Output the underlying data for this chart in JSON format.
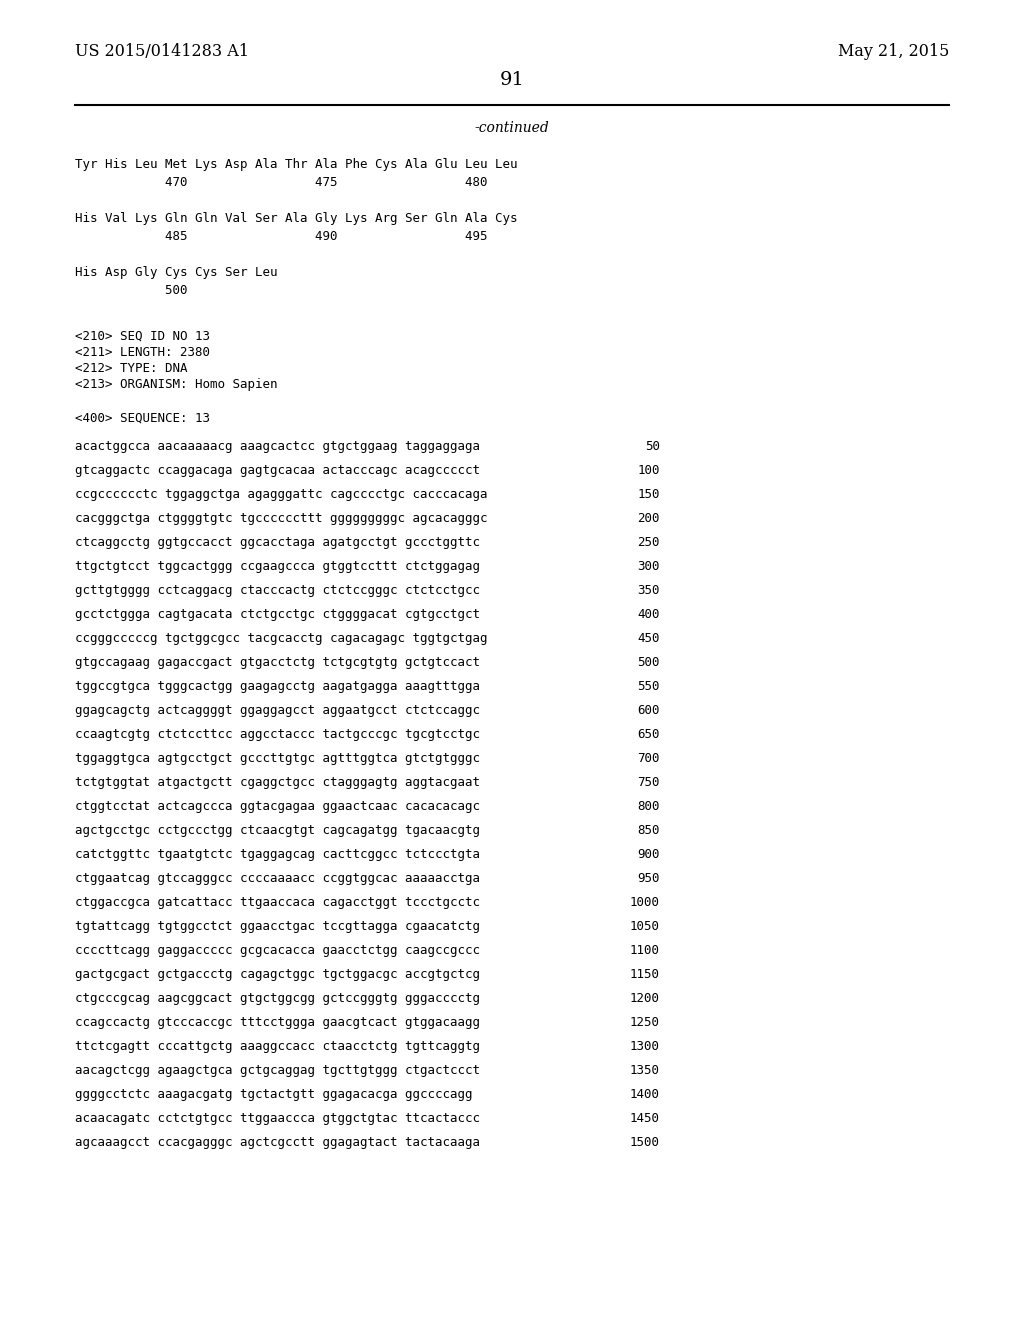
{
  "left_header": "US 2015/0141283 A1",
  "right_header": "May 21, 2015",
  "page_number": "91",
  "continued_label": "-continued",
  "background_color": "#ffffff",
  "text_color": "#000000",
  "protein_lines": [
    "Tyr His Leu Met Lys Asp Ala Thr Ala Phe Cys Ala Glu Leu Leu",
    "            470                 475                 480",
    "",
    "His Val Lys Gln Gln Val Ser Ala Gly Lys Arg Ser Gln Ala Cys",
    "            485                 490                 495",
    "",
    "His Asp Gly Cys Cys Ser Leu",
    "            500"
  ],
  "metadata_lines": [
    "<210> SEQ ID NO 13",
    "<211> LENGTH: 2380",
    "<212> TYPE: DNA",
    "<213> ORGANISM: Homo Sapien"
  ],
  "sequence_label": "<400> SEQUENCE: 13",
  "sequence_lines": [
    [
      "acactggcca aacaaaaacg aaagcactcc gtgctggaag taggaggaga",
      "50"
    ],
    [
      "gtcaggactc ccaggacaga gagtgcacaa actacccagc acagccccct",
      "100"
    ],
    [
      "ccgcccccctc tggaggctga agagggattc cagcccctgc cacccacaga",
      "150"
    ],
    [
      "cacgggctga ctggggtgtc tgccccccttt gggggggggc agcacagggc",
      "200"
    ],
    [
      "ctcaggcctg ggtgccacct ggcacctaga agatgcctgt gccctggttc",
      "250"
    ],
    [
      "ttgctgtcct tggcactggg ccgaagccca gtggtccttt ctctggagag",
      "300"
    ],
    [
      "gcttgtgggg cctcaggacg ctacccactg ctctccgggc ctctcctgcc",
      "350"
    ],
    [
      "gcctctggga cagtgacata ctctgcctgc ctggggacat cgtgcctgct",
      "400"
    ],
    [
      "ccgggcccccg tgctggcgcc tacgcacctg cagacagagc tggtgctgag",
      "450"
    ],
    [
      "gtgccagaag gagaccgact gtgacctctg tctgcgtgtg gctgtccact",
      "500"
    ],
    [
      "tggccgtgca tgggcactgg gaagagcctg aagatgagga aaagtttgga",
      "550"
    ],
    [
      "ggagcagctg actcaggggt ggaggagcct aggaatgcct ctctccaggc",
      "600"
    ],
    [
      "ccaagtcgtg ctctccttcc aggcctaccc tactgcccgc tgcgtcctgc",
      "650"
    ],
    [
      "tggaggtgca agtgcctgct gcccttgtgc agtttggtca gtctgtgggc",
      "700"
    ],
    [
      "tctgtggtat atgactgctt cgaggctgcc ctagggagtg aggtacgaat",
      "750"
    ],
    [
      "ctggtcctat actcagccca ggtacgagaa ggaactcaac cacacacagc",
      "800"
    ],
    [
      "agctgcctgc cctgccctgg ctcaacgtgt cagcagatgg tgacaacgtg",
      "850"
    ],
    [
      "catctggttc tgaatgtctc tgaggagcag cacttcggcc tctccctgta",
      "900"
    ],
    [
      "ctggaatcag gtccagggcc ccccaaaacc ccggtggcac aaaaacctga",
      "950"
    ],
    [
      "ctggaccgca gatcattacc ttgaaccaca cagacctggt tccctgcctc",
      "1000"
    ],
    [
      "tgtattcagg tgtggcctct ggaacctgac tccgttagga cgaacatctg",
      "1050"
    ],
    [
      "ccccttcagg gaggaccccc gcgcacacca gaacctctgg caagccgccc",
      "1100"
    ],
    [
      "gactgcgact gctgaccctg cagagctggc tgctggacgc accgtgctcg",
      "1150"
    ],
    [
      "ctgcccgcag aagcggcact gtgctggcgg gctccgggtg gggacccctg",
      "1200"
    ],
    [
      "ccagccactg gtcccaccgc tttcctggga gaacgtcact gtggacaagg",
      "1250"
    ],
    [
      "ttctcgagtt cccattgctg aaaggccacc ctaacctctg tgttcaggtg",
      "1300"
    ],
    [
      "aacagctcgg agaagctgca gctgcaggag tgcttgtggg ctgactccct",
      "1350"
    ],
    [
      "ggggcctctc aaagacgatg tgctactgtt ggagacacga ggccccagg",
      "1400"
    ],
    [
      "acaacagatc cctctgtgcc ttggaaccca gtggctgtac ttcactaccc",
      "1450"
    ],
    [
      "agcaaagcct ccacgagggc agctcgcctt ggagagtact tactacaaga",
      "1500"
    ]
  ]
}
